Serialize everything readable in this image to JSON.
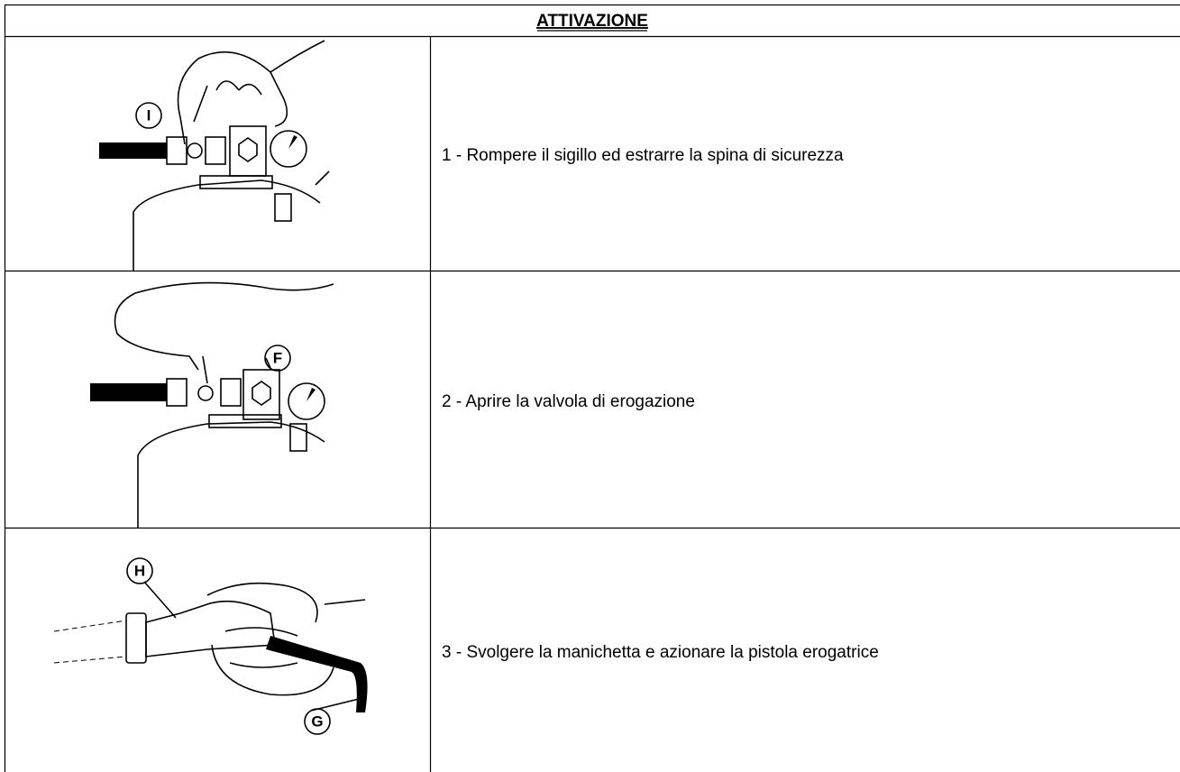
{
  "header": {
    "title": "ATTIVAZIONE"
  },
  "rows": [
    {
      "labels": [
        "I"
      ],
      "text": "1 - Rompere il sigillo ed estrarre la spina di sicurezza"
    },
    {
      "labels": [
        "F"
      ],
      "text": "2 - Aprire la valvola di erogazione"
    },
    {
      "labels": [
        "H",
        "G"
      ],
      "text": "3 - Svolgere la manichetta e azionare la pistola erogatrice"
    }
  ]
}
